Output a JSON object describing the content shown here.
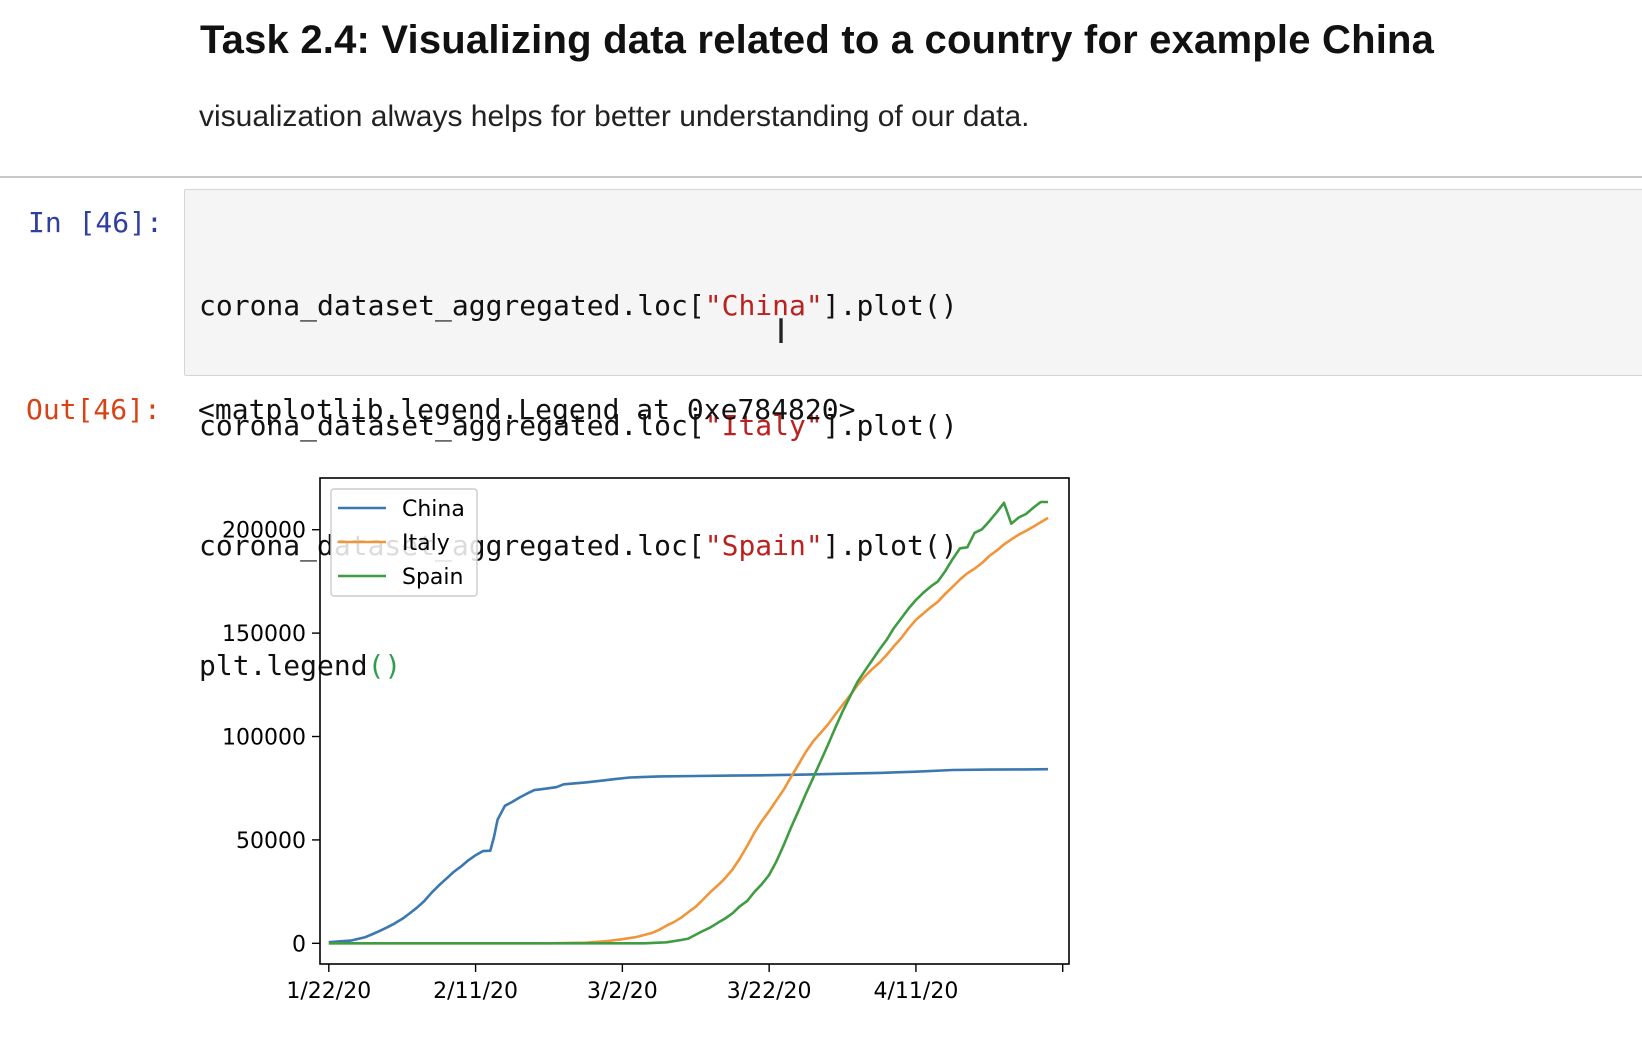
{
  "markdown": {
    "heading": "Task 2.4: Visualizing data related to a country for example China",
    "paragraph": "visualization always helps for better understanding of our data."
  },
  "cell": {
    "in_prompt": "In [46]:",
    "out_prompt": "Out[46]:",
    "code": [
      {
        "pre": "corona_dataset_aggregated.loc[",
        "str": "\"China\"",
        "post": "].plot()"
      },
      {
        "pre": "corona_dataset_aggregated.loc[",
        "str": "\"Italy\"",
        "post": "].plot()"
      },
      {
        "pre": "corona_dataset_aggregated.loc[",
        "str": "\"Spain\"",
        "post": "].plot()"
      },
      {
        "pre": "plt.legend",
        "str": "",
        "post": "()"
      }
    ],
    "output_text": "<matplotlib.legend.Legend at 0xe784820>"
  },
  "colors": {
    "china": "#3b78b0",
    "italy": "#f0953a",
    "spain": "#3f9c43"
  },
  "chart_data": {
    "type": "line",
    "x_day_min": -1.2,
    "x_day_max": 98,
    "x_ticks": [
      {
        "day": 0,
        "label": "1/22/20"
      },
      {
        "day": 20,
        "label": "2/11/20"
      },
      {
        "day": 40,
        "label": "3/2/20"
      },
      {
        "day": 60,
        "label": "3/22/20"
      },
      {
        "day": 80,
        "label": "4/11/20"
      },
      {
        "day": 100,
        "label": ""
      }
    ],
    "ylim": [
      -10000,
      225000
    ],
    "y_ticks": [
      0,
      50000,
      100000,
      150000,
      200000
    ],
    "legend_position": "top-left",
    "series": [
      {
        "name": "China",
        "points": [
          [
            0,
            550
          ],
          [
            3,
            1300
          ],
          [
            5,
            3000
          ],
          [
            6,
            4500
          ],
          [
            7,
            6100
          ],
          [
            8,
            7800
          ],
          [
            9,
            9700
          ],
          [
            10,
            11800
          ],
          [
            11,
            14400
          ],
          [
            12,
            17200
          ],
          [
            13,
            20400
          ],
          [
            14,
            24500
          ],
          [
            15,
            28000
          ],
          [
            16,
            31200
          ],
          [
            17,
            34500
          ],
          [
            18,
            37100
          ],
          [
            19,
            40100
          ],
          [
            20,
            42600
          ],
          [
            21,
            44600
          ],
          [
            22,
            44800
          ],
          [
            22.5,
            51200
          ],
          [
            23,
            59800
          ],
          [
            24,
            66500
          ],
          [
            25,
            68400
          ],
          [
            26,
            70500
          ],
          [
            27,
            72400
          ],
          [
            28,
            74100
          ],
          [
            29,
            74500
          ],
          [
            30,
            75000
          ],
          [
            31,
            75500
          ],
          [
            32,
            76900
          ],
          [
            33,
            77200
          ],
          [
            35,
            77800
          ],
          [
            37,
            78600
          ],
          [
            39,
            79400
          ],
          [
            41,
            80200
          ],
          [
            45,
            80700
          ],
          [
            50,
            80900
          ],
          [
            55,
            81100
          ],
          [
            60,
            81300
          ],
          [
            65,
            81600
          ],
          [
            70,
            82000
          ],
          [
            75,
            82400
          ],
          [
            80,
            83000
          ],
          [
            85,
            83800
          ],
          [
            90,
            84000
          ],
          [
            95,
            84100
          ],
          [
            98,
            84200
          ]
        ]
      },
      {
        "name": "Italy",
        "points": [
          [
            0,
            0
          ],
          [
            30,
            0
          ],
          [
            35,
            300
          ],
          [
            38,
            1100
          ],
          [
            40,
            2000
          ],
          [
            42,
            3100
          ],
          [
            44,
            5000
          ],
          [
            45,
            6500
          ],
          [
            46,
            8500
          ],
          [
            47,
            10200
          ],
          [
            48,
            12400
          ],
          [
            49,
            15100
          ],
          [
            50,
            17700
          ],
          [
            51,
            21200
          ],
          [
            52,
            24800
          ],
          [
            53,
            28000
          ],
          [
            54,
            31500
          ],
          [
            55,
            35700
          ],
          [
            56,
            41000
          ],
          [
            57,
            47000
          ],
          [
            58,
            53600
          ],
          [
            59,
            59100
          ],
          [
            60,
            63900
          ],
          [
            61,
            69200
          ],
          [
            62,
            74400
          ],
          [
            63,
            80600
          ],
          [
            64,
            86500
          ],
          [
            65,
            92500
          ],
          [
            66,
            97700
          ],
          [
            67,
            101700
          ],
          [
            68,
            105800
          ],
          [
            69,
            110600
          ],
          [
            70,
            115200
          ],
          [
            71,
            119800
          ],
          [
            72,
            124600
          ],
          [
            73,
            128900
          ],
          [
            74,
            132500
          ],
          [
            75,
            135600
          ],
          [
            76,
            139400
          ],
          [
            77,
            143600
          ],
          [
            78,
            147600
          ],
          [
            79,
            152300
          ],
          [
            80,
            156400
          ],
          [
            81,
            159500
          ],
          [
            82,
            162500
          ],
          [
            83,
            165200
          ],
          [
            84,
            169000
          ],
          [
            85,
            172400
          ],
          [
            86,
            175900
          ],
          [
            87,
            178900
          ],
          [
            88,
            181200
          ],
          [
            89,
            183900
          ],
          [
            90,
            187300
          ],
          [
            91,
            189900
          ],
          [
            92,
            192900
          ],
          [
            93,
            195300
          ],
          [
            94,
            197600
          ],
          [
            95,
            199400
          ],
          [
            96,
            201500
          ],
          [
            97,
            203600
          ],
          [
            98,
            205700
          ]
        ]
      },
      {
        "name": "Spain",
        "points": [
          [
            0,
            0
          ],
          [
            43,
            0
          ],
          [
            46,
            500
          ],
          [
            48,
            1600
          ],
          [
            49,
            2300
          ],
          [
            50,
            4200
          ],
          [
            51,
            6000
          ],
          [
            52,
            7700
          ],
          [
            53,
            9900
          ],
          [
            54,
            12000
          ],
          [
            55,
            14500
          ],
          [
            56,
            17900
          ],
          [
            57,
            20400
          ],
          [
            58,
            24900
          ],
          [
            59,
            28600
          ],
          [
            60,
            33100
          ],
          [
            61,
            39700
          ],
          [
            62,
            47600
          ],
          [
            63,
            56200
          ],
          [
            64,
            64100
          ],
          [
            65,
            72200
          ],
          [
            66,
            80100
          ],
          [
            67,
            87900
          ],
          [
            68,
            95900
          ],
          [
            69,
            104100
          ],
          [
            70,
            112000
          ],
          [
            71,
            119200
          ],
          [
            72,
            126200
          ],
          [
            73,
            131600
          ],
          [
            74,
            136700
          ],
          [
            75,
            141900
          ],
          [
            76,
            146700
          ],
          [
            77,
            152400
          ],
          [
            78,
            157100
          ],
          [
            79,
            161900
          ],
          [
            80,
            166000
          ],
          [
            81,
            169500
          ],
          [
            82,
            172500
          ],
          [
            83,
            175000
          ],
          [
            84,
            180000
          ],
          [
            85,
            185800
          ],
          [
            86,
            191000
          ],
          [
            87,
            191500
          ],
          [
            88,
            198500
          ],
          [
            89,
            200200
          ],
          [
            90,
            204100
          ],
          [
            91,
            208400
          ],
          [
            92,
            213000
          ],
          [
            93,
            202900
          ],
          [
            94,
            205900
          ],
          [
            95,
            207600
          ],
          [
            96,
            210700
          ],
          [
            97,
            213400
          ],
          [
            98,
            213400
          ]
        ]
      }
    ]
  }
}
